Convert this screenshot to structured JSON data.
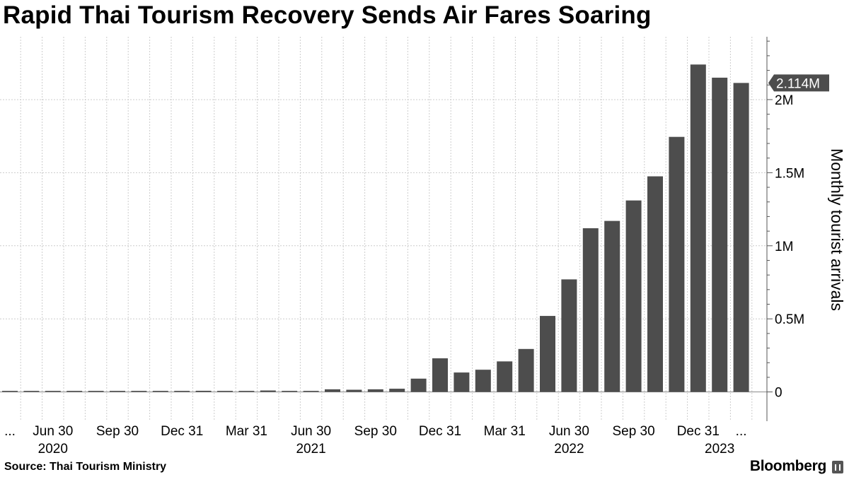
{
  "title": "Rapid Thai Tourism Recovery Sends Air Fares Soaring",
  "source": "Source: Thai Tourism Ministry",
  "brand": "Bloomberg",
  "colors": {
    "bar": "#4d4d4d",
    "grid": "#cccccc",
    "axis": "#555555"
  },
  "chart_data": {
    "type": "bar",
    "ylabel": "Monthly tourist arrivals",
    "ylim": [
      -0.2,
      2.43
    ],
    "y_unit": "millions",
    "y_ticks": [
      {
        "value": 0,
        "label": "0"
      },
      {
        "value": 0.5,
        "label": "0.5M"
      },
      {
        "value": 1,
        "label": "1M"
      },
      {
        "value": 1.5,
        "label": "1.5M"
      },
      {
        "value": 2,
        "label": "2M"
      }
    ],
    "last_value_label": "2.114M",
    "categories": [
      "2020-04",
      "2020-05",
      "2020-06",
      "2020-07",
      "2020-08",
      "2020-09",
      "2020-10",
      "2020-11",
      "2020-12",
      "2021-01",
      "2021-02",
      "2021-03",
      "2021-04",
      "2021-05",
      "2021-06",
      "2021-07",
      "2021-08",
      "2021-09",
      "2021-10",
      "2021-11",
      "2021-12",
      "2022-01",
      "2022-02",
      "2022-03",
      "2022-04",
      "2022-05",
      "2022-06",
      "2022-07",
      "2022-08",
      "2022-09",
      "2022-10",
      "2022-11",
      "2022-12",
      "2023-01",
      "2023-02"
    ],
    "values": [
      0.001,
      0.001,
      0.001,
      0.001,
      0.001,
      0.002,
      0.003,
      0.004,
      0.006,
      0.008,
      0.005,
      0.007,
      0.01,
      0.006,
      0.005,
      0.018,
      0.015,
      0.018,
      0.022,
      0.091,
      0.23,
      0.133,
      0.152,
      0.209,
      0.294,
      0.52,
      0.77,
      1.12,
      1.17,
      1.31,
      1.475,
      1.745,
      2.24,
      2.15,
      2.114
    ],
    "x_ticks": [
      {
        "at": "2020-04",
        "label": "..."
      },
      {
        "at": "2020-06",
        "label": "Jun 30"
      },
      {
        "at": "2020-09",
        "label": "Sep 30"
      },
      {
        "at": "2020-12",
        "label": "Dec 31"
      },
      {
        "at": "2021-03",
        "label": "Mar 31"
      },
      {
        "at": "2021-06",
        "label": "Jun 30"
      },
      {
        "at": "2021-09",
        "label": "Sep 30"
      },
      {
        "at": "2021-12",
        "label": "Dec 31"
      },
      {
        "at": "2022-03",
        "label": "Mar 31"
      },
      {
        "at": "2022-06",
        "label": "Jun 30"
      },
      {
        "at": "2022-09",
        "label": "Sep 30"
      },
      {
        "at": "2022-12",
        "label": "Dec 31"
      },
      {
        "at": "2023-02",
        "label": "..."
      }
    ],
    "year_labels": [
      {
        "at": "2020-06",
        "label": "2020"
      },
      {
        "at": "2021-06",
        "label": "2021"
      },
      {
        "at": "2022-06",
        "label": "2022"
      },
      {
        "at": "2023-01",
        "label": "2023"
      }
    ],
    "grid": true
  }
}
